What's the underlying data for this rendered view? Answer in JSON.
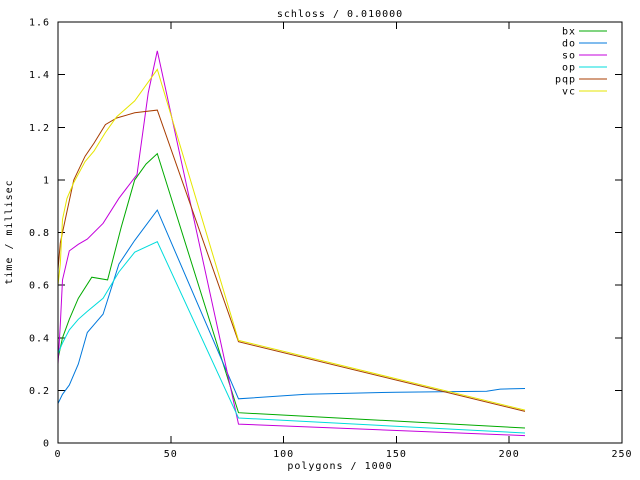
{
  "chart_data": {
    "type": "line",
    "title": "schloss / 0.010000",
    "xlabel": "polygons / 1000",
    "ylabel": "time / millisec",
    "xlim": [
      0,
      250
    ],
    "ylim": [
      0,
      1.6
    ],
    "xticks": [
      0,
      50,
      100,
      150,
      200,
      250
    ],
    "xtick_labels": [
      "0",
      "50",
      "100",
      "150",
      "200",
      "250"
    ],
    "yticks": [
      0,
      0.2,
      0.4,
      0.6,
      0.8,
      1.0,
      1.2,
      1.4,
      1.6
    ],
    "ytick_labels": [
      "0",
      "0.2",
      "0.4",
      "0.6",
      "0.8",
      "1",
      "1.2",
      "1.4",
      "1.6"
    ],
    "grid": false,
    "legend_position": "top-right-inside",
    "background_color": "#ffffff",
    "axis_color": "#000000",
    "series": [
      {
        "name": "bx",
        "color": "#00aa00",
        "points": [
          [
            0,
            0.32
          ],
          [
            2,
            0.4
          ],
          [
            5,
            0.47
          ],
          [
            9,
            0.55
          ],
          [
            15,
            0.63
          ],
          [
            22,
            0.62
          ],
          [
            28,
            0.82
          ],
          [
            34,
            1.0
          ],
          [
            39,
            1.06
          ],
          [
            44,
            1.1
          ],
          [
            80,
            0.115
          ],
          [
            207,
            0.057
          ]
        ]
      },
      {
        "name": "do",
        "color": "#0078dc",
        "points": [
          [
            0,
            0.15
          ],
          [
            2,
            0.185
          ],
          [
            5,
            0.22
          ],
          [
            9,
            0.3
          ],
          [
            13,
            0.42
          ],
          [
            16,
            0.45
          ],
          [
            20,
            0.49
          ],
          [
            27,
            0.68
          ],
          [
            34,
            0.77
          ],
          [
            44,
            0.885
          ],
          [
            80,
            0.168
          ],
          [
            110,
            0.185
          ],
          [
            150,
            0.193
          ],
          [
            190,
            0.197
          ],
          [
            196,
            0.205
          ],
          [
            207,
            0.207
          ]
        ]
      },
      {
        "name": "so",
        "color": "#c400dc",
        "points": [
          [
            0,
            0.3
          ],
          [
            1,
            0.45
          ],
          [
            2,
            0.62
          ],
          [
            5,
            0.73
          ],
          [
            9,
            0.755
          ],
          [
            13,
            0.775
          ],
          [
            20,
            0.835
          ],
          [
            27,
            0.93
          ],
          [
            35,
            1.02
          ],
          [
            40,
            1.33
          ],
          [
            44,
            1.49
          ],
          [
            80,
            0.072
          ],
          [
            207,
            0.028
          ]
        ]
      },
      {
        "name": "op",
        "color": "#00dcdc",
        "points": [
          [
            0,
            0.34
          ],
          [
            2,
            0.38
          ],
          [
            5,
            0.43
          ],
          [
            9,
            0.47
          ],
          [
            13,
            0.5
          ],
          [
            20,
            0.55
          ],
          [
            27,
            0.65
          ],
          [
            34,
            0.725
          ],
          [
            44,
            0.765
          ],
          [
            80,
            0.095
          ],
          [
            207,
            0.038
          ]
        ]
      },
      {
        "name": "pqp",
        "color": "#a83c00",
        "points": [
          [
            0,
            0.66
          ],
          [
            1,
            0.76
          ],
          [
            2,
            0.8
          ],
          [
            4,
            0.88
          ],
          [
            7,
            1.0
          ],
          [
            12,
            1.09
          ],
          [
            16,
            1.14
          ],
          [
            21,
            1.21
          ],
          [
            26,
            1.235
          ],
          [
            34,
            1.255
          ],
          [
            44,
            1.265
          ],
          [
            80,
            0.385
          ],
          [
            207,
            0.12
          ]
        ]
      },
      {
        "name": "vc",
        "color": "#e6e600",
        "points": [
          [
            0,
            0.6
          ],
          [
            1,
            0.68
          ],
          [
            2,
            0.85
          ],
          [
            4,
            0.93
          ],
          [
            7,
            0.99
          ],
          [
            12,
            1.07
          ],
          [
            16,
            1.11
          ],
          [
            21,
            1.18
          ],
          [
            26,
            1.24
          ],
          [
            34,
            1.3
          ],
          [
            44,
            1.42
          ],
          [
            80,
            0.39
          ],
          [
            207,
            0.125
          ]
        ]
      }
    ]
  }
}
